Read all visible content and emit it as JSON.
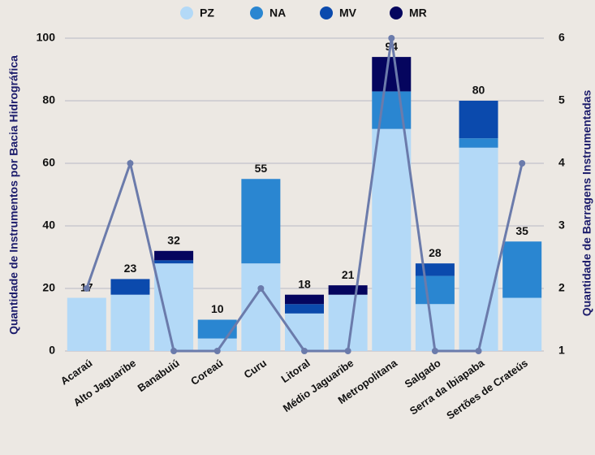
{
  "chart_data": {
    "type": "stacked_bar_line",
    "categories": [
      "Acaraú",
      "Alto Jaguaribe",
      "Banabuiú",
      "Coreaú",
      "Curu",
      "Litoral",
      "Médio Jaguaribe",
      "Metropolitana",
      "Salgado",
      "Serra da Ibiapaba",
      "Sertões de Crateús"
    ],
    "series": [
      {
        "name": "PZ",
        "color": "#b3d9f7",
        "values": [
          17,
          18,
          28,
          4,
          28,
          12,
          18,
          71,
          15,
          65,
          17
        ]
      },
      {
        "name": "NA",
        "color": "#2a86d1",
        "values": [
          0,
          0,
          0,
          6,
          27,
          0,
          0,
          12,
          9,
          3,
          18
        ]
      },
      {
        "name": "MV",
        "color": "#0b4aad",
        "values": [
          0,
          5,
          1,
          0,
          0,
          3,
          0,
          0,
          4,
          12,
          0
        ]
      },
      {
        "name": "MR",
        "color": "#05055e",
        "values": [
          0,
          0,
          3,
          0,
          0,
          3,
          3,
          11,
          0,
          0,
          0
        ]
      }
    ],
    "totals": [
      17,
      23,
      32,
      10,
      55,
      18,
      21,
      94,
      28,
      80,
      35
    ],
    "line": {
      "color": "#6b7bab",
      "axis": "y2",
      "values": [
        2,
        4,
        1,
        1,
        2,
        1,
        1,
        6,
        1,
        1,
        4
      ]
    },
    "ylabel": "Quantidade de Instrumentos por Bacia Hidrográfica",
    "y2label": "Quantidade de Barragens Instrumentadas",
    "ylim": [
      0,
      100
    ],
    "yticks": [
      0,
      20,
      40,
      60,
      80,
      100
    ],
    "y2lim": [
      1,
      6
    ],
    "y2ticks": [
      1,
      2,
      3,
      4,
      5,
      6
    ],
    "grid": true,
    "legend": "top"
  }
}
